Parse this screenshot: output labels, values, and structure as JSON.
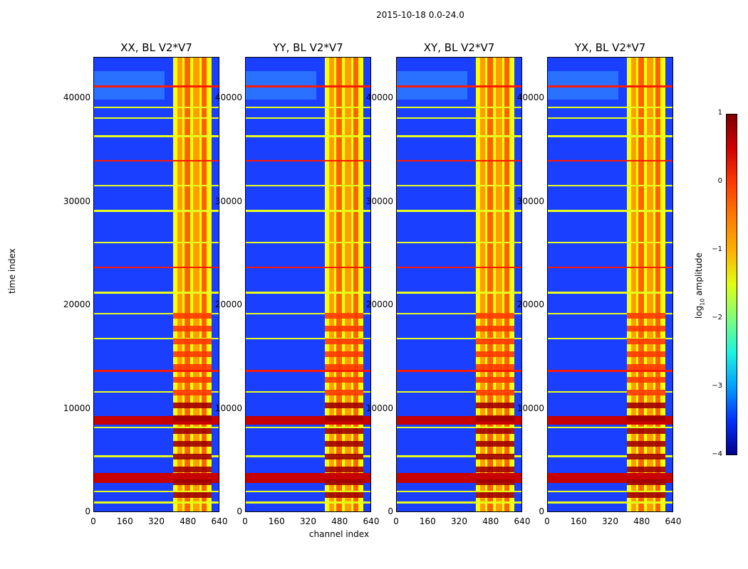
{
  "suptitle": "2015-10-18 0.0-24.0",
  "chart_data": {
    "type": "heatmap",
    "xlabel": "channel index",
    "ylabel": "time index",
    "x_ticks": [
      "0",
      "160",
      "320",
      "480",
      "640"
    ],
    "y_ticks": [
      "0",
      "10000",
      "20000",
      "30000",
      "40000"
    ],
    "xlim": [
      0,
      640
    ],
    "ylim": [
      0,
      44000
    ],
    "panels": [
      {
        "title": "XX, BL V2*V7",
        "polarization": "XX"
      },
      {
        "title": "YY, BL V2*V7",
        "polarization": "YY"
      },
      {
        "title": "XY, BL V2*V7",
        "polarization": "XY"
      },
      {
        "title": "YX, BL V2*V7",
        "polarization": "YX"
      }
    ],
    "colorbar": {
      "label": "log10 amplitude",
      "label_main": "log",
      "label_sub": "10",
      "label_rest": " amplitude",
      "range": [
        -4,
        1
      ],
      "ticks": [
        "1",
        "0",
        "−1",
        "−2",
        "−3",
        "−4"
      ],
      "colormap": "jet"
    },
    "bright_channel_range": [
      400,
      600
    ],
    "strong_rfi_time_bands": [
      8500,
      13200
    ]
  }
}
